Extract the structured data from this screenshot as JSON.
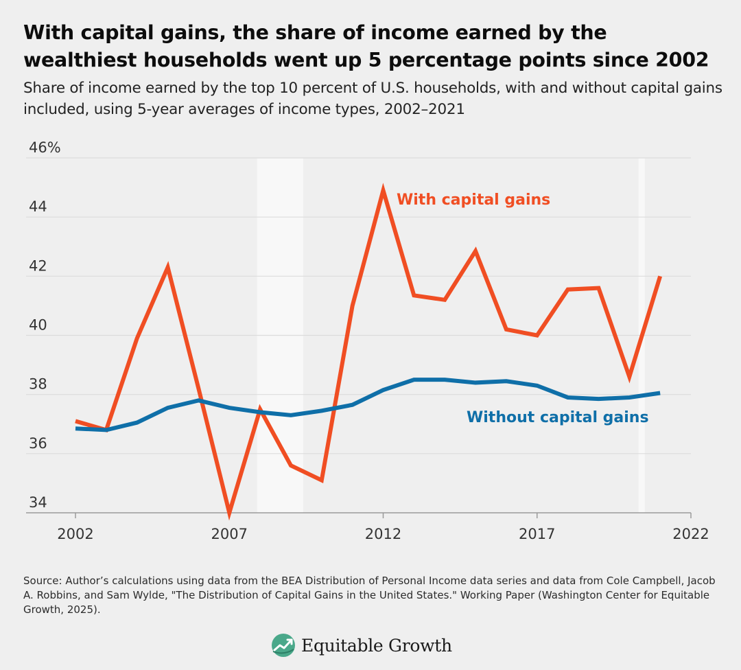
{
  "header": {
    "title": "With capital gains, the share of income earned by the wealthiest households went up 5 percentage points since 2002",
    "subtitle": "Share of income earned by the top 10 percent of U.S. households, with and without capital gains included, using 5-year averages of income types, 2002–2021"
  },
  "chart_data": {
    "type": "line",
    "title": "",
    "xlabel": "",
    "ylabel": "",
    "xlim": [
      2002,
      2022
    ],
    "ylim": [
      34,
      46
    ],
    "x_ticks": [
      2002,
      2007,
      2012,
      2017,
      2022
    ],
    "y_ticks": [
      {
        "value": 34,
        "label": "34"
      },
      {
        "value": 36,
        "label": "36"
      },
      {
        "value": 38,
        "label": "38"
      },
      {
        "value": 40,
        "label": "40"
      },
      {
        "value": 42,
        "label": "42"
      },
      {
        "value": 44,
        "label": "44"
      },
      {
        "value": 46,
        "label": "46%"
      }
    ],
    "grid": true,
    "shaded_periods": [
      [
        2007.9,
        2009.4
      ],
      [
        2020.3,
        2020.5
      ]
    ],
    "x": [
      2002,
      2003,
      2004,
      2005,
      2006,
      2007,
      2008,
      2009,
      2010,
      2011,
      2012,
      2013,
      2014,
      2015,
      2016,
      2017,
      2018,
      2019,
      2020,
      2021
    ],
    "series": [
      {
        "name": "With capital gains",
        "color": "#f04e23",
        "values": [
          37.1,
          36.8,
          39.9,
          42.3,
          38.2,
          34.0,
          37.5,
          35.6,
          35.1,
          41.0,
          44.9,
          41.35,
          41.2,
          42.85,
          40.2,
          40.0,
          41.55,
          41.6,
          38.6,
          42.0
        ]
      },
      {
        "name": "Without capital gains",
        "color": "#0f6fa8",
        "values": [
          36.85,
          36.8,
          37.05,
          37.55,
          37.8,
          37.55,
          37.4,
          37.3,
          37.45,
          37.65,
          38.15,
          38.5,
          38.5,
          38.4,
          38.45,
          38.3,
          37.9,
          37.85,
          37.9,
          38.05
        ]
      }
    ]
  },
  "footer": {
    "source": "Source: Author’s calculations using data from the BEA Distribution of Personal Income data series and data from Cole Campbell, Jacob A. Robbins, and Sam Wylde, \"The Distribution of Capital Gains in the United States.\" Working Paper (Washington Center for Equitable Growth, 2025).",
    "brand_name": "Equitable Growth",
    "brand_icon": "equitable-growth-logo-icon",
    "brand_color": "#4aa88a"
  }
}
